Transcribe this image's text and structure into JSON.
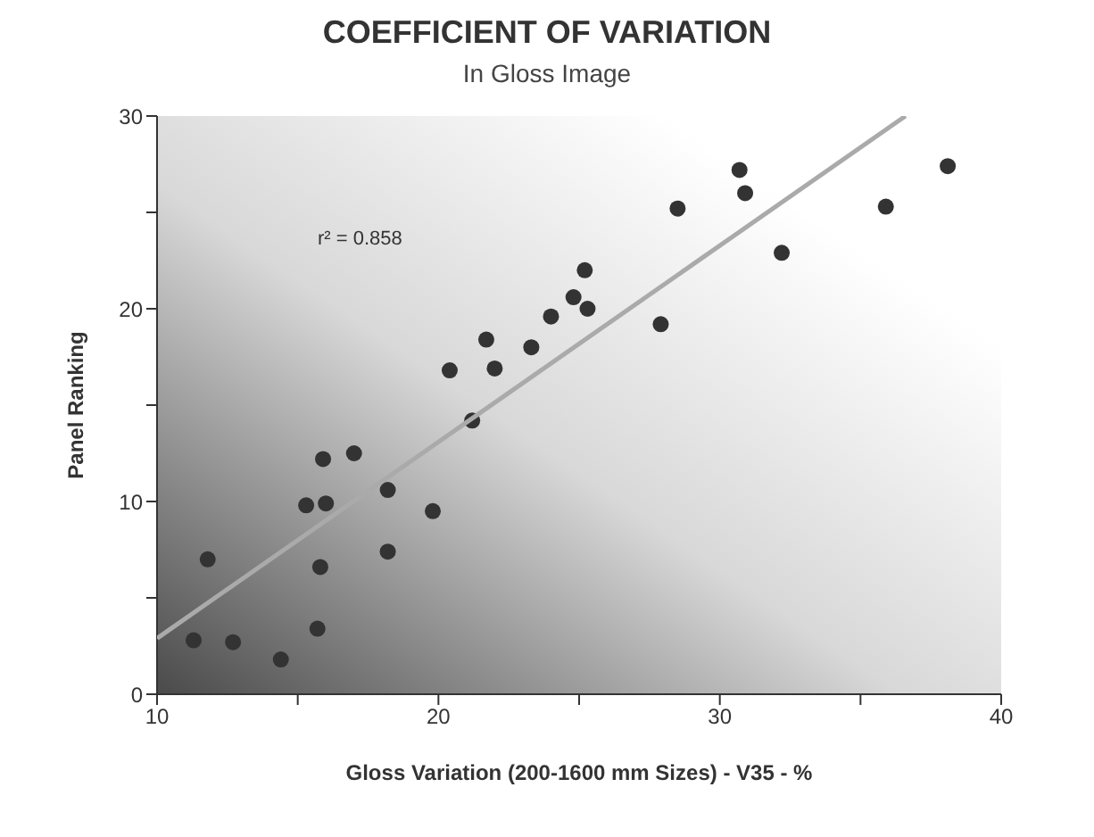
{
  "chart_data": {
    "type": "scatter",
    "title": "COEFFICIENT OF VARIATION",
    "subtitle": "In Gloss Image",
    "xlabel": "Gloss Variation (200-1600 mm Sizes)  -  V35  -  %",
    "ylabel": "Panel Ranking",
    "annotations": [
      "r² = 0.858"
    ],
    "series": [
      {
        "type": "scatter",
        "marker": "circle",
        "color": "#333333",
        "x": [
          11.3,
          11.8,
          12.7,
          14.4,
          15.7,
          15.8,
          15.3,
          16.0,
          15.9,
          17.0,
          18.2,
          18.2,
          19.8,
          20.4,
          21.2,
          21.7,
          22.0,
          23.3,
          24.0,
          24.8,
          25.2,
          25.3,
          27.9,
          28.5,
          30.7,
          30.9,
          32.2,
          35.9,
          38.1
        ],
        "values": [
          2.8,
          7.0,
          2.7,
          1.8,
          3.4,
          6.6,
          9.8,
          9.9,
          12.2,
          12.5,
          10.6,
          7.4,
          9.5,
          16.8,
          14.2,
          18.4,
          16.9,
          18.0,
          19.6,
          20.6,
          22.0,
          20.0,
          19.2,
          25.2,
          27.2,
          26.0,
          22.9,
          25.3,
          27.4
        ]
      },
      {
        "type": "line",
        "color": "#aaaaaa",
        "x": [
          10,
          36.6
        ],
        "values": [
          2.9,
          30
        ]
      }
    ],
    "xlim": [
      10,
      40
    ],
    "xticks": [
      10,
      {
        "value": 15,
        "label": null
      },
      20,
      {
        "value": 25,
        "label": null
      },
      30,
      {
        "value": 35,
        "label": null
      },
      40
    ],
    "ylim": [
      0,
      30
    ],
    "yticks": [
      0,
      {
        "value": 5,
        "label": null
      },
      10,
      {
        "value": 15,
        "label": null
      },
      20,
      {
        "value": 25,
        "label": null
      },
      30
    ],
    "grid": false,
    "legend": false
  }
}
